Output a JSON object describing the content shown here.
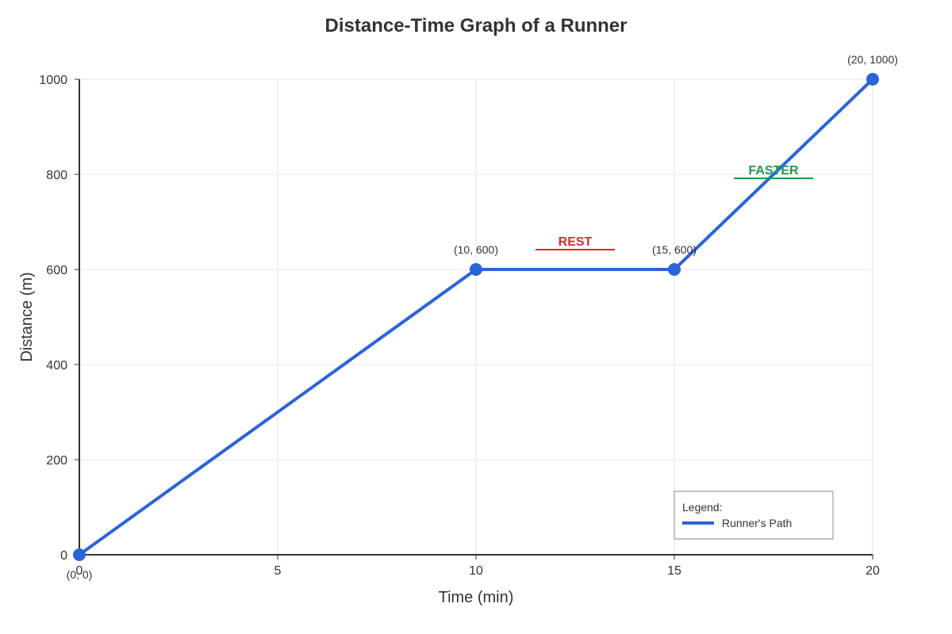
{
  "chart_data": {
    "type": "line",
    "title": "Distance-Time Graph of a Runner",
    "xlabel": "Time (min)",
    "ylabel": "Distance (m)",
    "xlim": [
      0,
      20
    ],
    "ylim": [
      0,
      1000
    ],
    "x_ticks": [
      0,
      5,
      10,
      15,
      20
    ],
    "y_ticks": [
      0,
      200,
      400,
      600,
      800,
      1000
    ],
    "grid": true,
    "series": [
      {
        "name": "Runner's Path",
        "color": "#2a64d9",
        "points": [
          {
            "x": 0,
            "y": 0,
            "label": "(0, 0)"
          },
          {
            "x": 10,
            "y": 600,
            "label": "(10, 600)"
          },
          {
            "x": 15,
            "y": 600,
            "label": "(15, 600)"
          },
          {
            "x": 20,
            "y": 1000,
            "label": "(20, 1000)"
          }
        ]
      }
    ],
    "annotations": [
      {
        "text": "REST",
        "x": 12.5,
        "y": 600,
        "color": "#d32f2f"
      },
      {
        "text": "FASTER",
        "x": 17.5,
        "y": 800,
        "color": "#1e9a4a"
      }
    ],
    "legend": {
      "title": "Legend:",
      "position": "bottom-right",
      "entries": [
        "Runner's Path"
      ]
    }
  }
}
